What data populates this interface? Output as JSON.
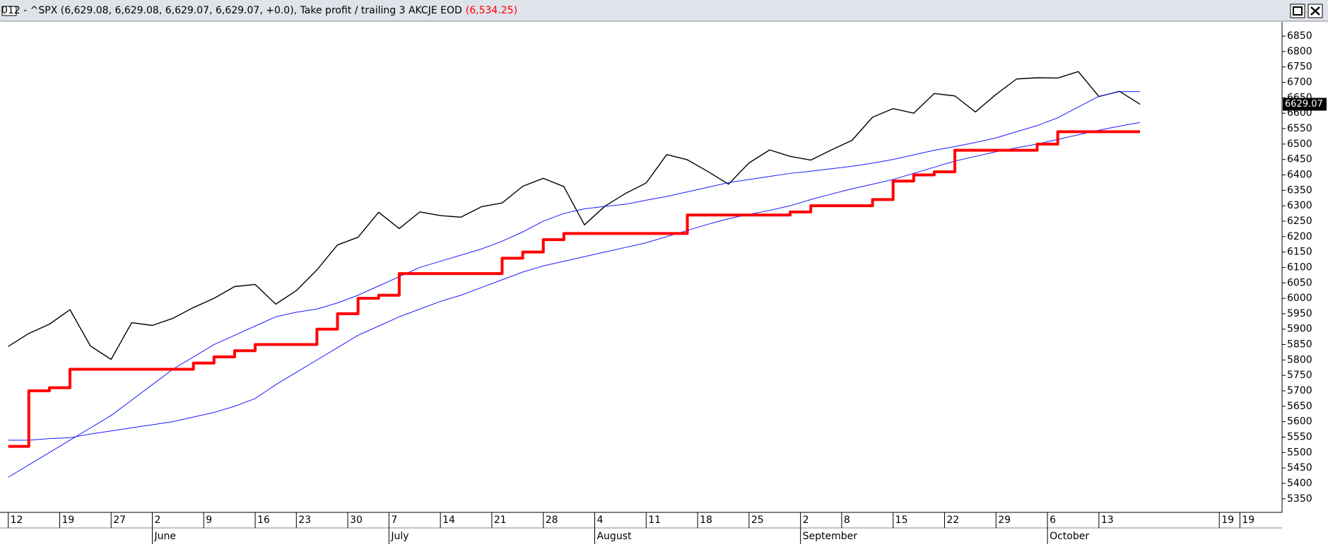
{
  "chart_data": {
    "type": "line",
    "title": "012 - ^SPX (6,629.08, 6,629.08, 6,629.07, 6,629.07, +0.0), Take profit / trailing 3 AKCJE EOD",
    "title_value": "(6,534.25)",
    "x": [
      0,
      2,
      4,
      6,
      8,
      10,
      12,
      14,
      16,
      18,
      20,
      22,
      24,
      26,
      28,
      30,
      32,
      34,
      36,
      38,
      40,
      42,
      44,
      46,
      48,
      50,
      52,
      54,
      56,
      58,
      60,
      62,
      64,
      66,
      68,
      70,
      72,
      74,
      76,
      78,
      80,
      82,
      84,
      86,
      88,
      90,
      92,
      94,
      96,
      98,
      100,
      102,
      104,
      106,
      108,
      110
    ],
    "series": [
      {
        "color": "#000000",
        "width": 1.4,
        "values": [
          5844,
          5886,
          5916,
          5963,
          5845,
          5802,
          5921,
          5912,
          5935,
          5970,
          6000,
          6038,
          6045,
          5981,
          6025,
          6092,
          6173,
          6198,
          6279,
          6226,
          6280,
          6268,
          6263,
          6297,
          6309,
          6363,
          6389,
          6362,
          6238,
          6299,
          6340,
          6374,
          6466,
          6449,
          6411,
          6370,
          6439,
          6481,
          6460,
          6448,
          6481,
          6512,
          6587,
          6615,
          6600,
          6664,
          6656,
          6604,
          6661,
          6711,
          6715,
          6714,
          6735,
          6654,
          6671,
          6629
        ]
      },
      {
        "color": "#1a1aff",
        "width": 1,
        "values": [
          5420,
          5460,
          5500,
          5540,
          5580,
          5620,
          5670,
          5720,
          5770,
          5810,
          5850,
          5880,
          5910,
          5940,
          5955,
          5965,
          5985,
          6010,
          6040,
          6070,
          6100,
          6120,
          6140,
          6160,
          6185,
          6215,
          6250,
          6275,
          6290,
          6298,
          6305,
          6318,
          6330,
          6345,
          6360,
          6375,
          6385,
          6395,
          6405,
          6412,
          6420,
          6428,
          6438,
          6450,
          6465,
          6480,
          6492,
          6505,
          6520,
          6540,
          6560,
          6585,
          6620,
          6655,
          6670,
          6670
        ]
      },
      {
        "color": "#1a1aff",
        "width": 1,
        "values": [
          5540,
          5540,
          5545,
          5548,
          5560,
          5570,
          5580,
          5590,
          5600,
          5615,
          5630,
          5650,
          5675,
          5720,
          5760,
          5800,
          5840,
          5880,
          5910,
          5940,
          5965,
          5990,
          6010,
          6035,
          6060,
          6085,
          6105,
          6120,
          6135,
          6150,
          6165,
          6180,
          6200,
          6220,
          6240,
          6258,
          6272,
          6285,
          6300,
          6320,
          6338,
          6355,
          6370,
          6385,
          6405,
          6425,
          6445,
          6460,
          6475,
          6488,
          6500,
          6515,
          6530,
          6545,
          6558,
          6570
        ]
      },
      {
        "color": "#ff0000",
        "width": 4,
        "step": true,
        "values": [
          5520,
          5700,
          5710,
          5770,
          5770,
          5770,
          5770,
          5770,
          5770,
          5790,
          5810,
          5830,
          5850,
          5850,
          5850,
          5900,
          5950,
          6000,
          6010,
          6080,
          6080,
          6080,
          6080,
          6080,
          6130,
          6150,
          6190,
          6210,
          6210,
          6210,
          6210,
          6210,
          6210,
          6270,
          6270,
          6270,
          6270,
          6270,
          6280,
          6300,
          6300,
          6300,
          6320,
          6380,
          6400,
          6410,
          6480,
          6480,
          6480,
          6480,
          6500,
          6540,
          6540,
          6540,
          6540,
          6540
        ]
      }
    ],
    "last_price": 6629.07,
    "xlim": [
      -0.8,
      123.8
    ],
    "ylim": [
      5306,
      6896
    ],
    "yticks": [
      5350,
      5400,
      5450,
      5500,
      5550,
      5600,
      5650,
      5700,
      5750,
      5800,
      5850,
      5900,
      5950,
      6000,
      6050,
      6100,
      6150,
      6200,
      6250,
      6300,
      6350,
      6400,
      6450,
      6500,
      6550,
      6600,
      6650,
      6700,
      6750,
      6800,
      6850
    ],
    "xticks": [
      {
        "value": 0,
        "label": "12"
      },
      {
        "value": 5,
        "label": "19"
      },
      {
        "value": 10,
        "label": "27"
      },
      {
        "value": 14,
        "label": "2"
      },
      {
        "value": 19,
        "label": "9"
      },
      {
        "value": 24,
        "label": "16"
      },
      {
        "value": 28,
        "label": "23"
      },
      {
        "value": 33,
        "label": "30"
      },
      {
        "value": 37,
        "label": "7"
      },
      {
        "value": 42,
        "label": "14"
      },
      {
        "value": 47,
        "label": "21"
      },
      {
        "value": 52,
        "label": "28"
      },
      {
        "value": 57,
        "label": "4"
      },
      {
        "value": 62,
        "label": "11"
      },
      {
        "value": 67,
        "label": "18"
      },
      {
        "value": 72,
        "label": "25"
      },
      {
        "value": 77,
        "label": "2"
      },
      {
        "value": 81,
        "label": "8"
      },
      {
        "value": 86,
        "label": "15"
      },
      {
        "value": 91,
        "label": "22"
      },
      {
        "value": 96,
        "label": "29"
      },
      {
        "value": 101,
        "label": "6"
      },
      {
        "value": 106,
        "label": "13"
      },
      {
        "value": 117.7,
        "label": "19"
      },
      {
        "value": 119.7,
        "label": "19"
      }
    ],
    "month_ticks": [
      {
        "value": 14,
        "label": "June"
      },
      {
        "value": 37,
        "label": "July"
      },
      {
        "value": 57,
        "label": "August"
      },
      {
        "value": 77,
        "label": "September"
      },
      {
        "value": 101,
        "label": "October"
      }
    ]
  }
}
